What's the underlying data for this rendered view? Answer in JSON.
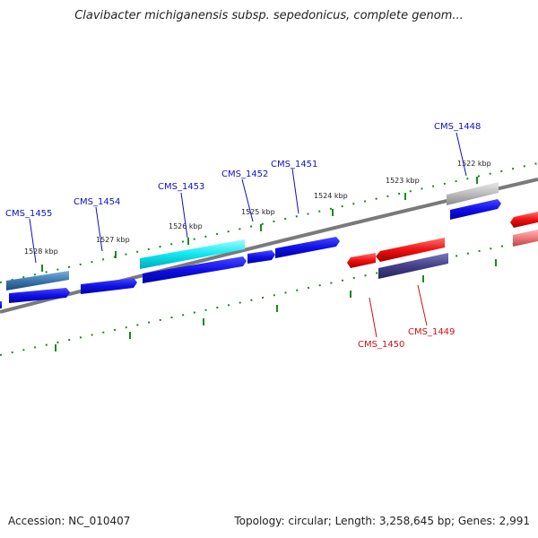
{
  "title": "Clavibacter michiganensis subsp. sepedonicus, complete genom...",
  "footer": {
    "accession": "Accession: NC_010407",
    "summary": "Topology: circular; Length: 3,258,645 bp; Genes: 2,991"
  },
  "colors": {
    "backbone": "#7a7a7a",
    "tick": "#1a8a1a",
    "forward_label": "#1010c0",
    "reverse_label": "#d01010"
  },
  "ticks": [
    {
      "label": "1528 kbp"
    },
    {
      "label": "1527 kbp"
    },
    {
      "label": "1526 kbp"
    },
    {
      "label": "1525 kbp"
    },
    {
      "label": "1524 kbp"
    },
    {
      "label": "1523 kbp"
    },
    {
      "label": "1522 kbp"
    }
  ],
  "genes": [
    {
      "label": "CMS_1455",
      "strand": "forward"
    },
    {
      "label": "CMS_1454",
      "strand": "forward"
    },
    {
      "label": "CMS_1453",
      "strand": "forward"
    },
    {
      "label": "CMS_1452",
      "strand": "forward"
    },
    {
      "label": "CMS_1451",
      "strand": "forward"
    },
    {
      "label": "CMS_1448",
      "strand": "forward"
    },
    {
      "label": "CMS_1450",
      "strand": "reverse"
    },
    {
      "label": "CMS_1449",
      "strand": "reverse"
    }
  ]
}
